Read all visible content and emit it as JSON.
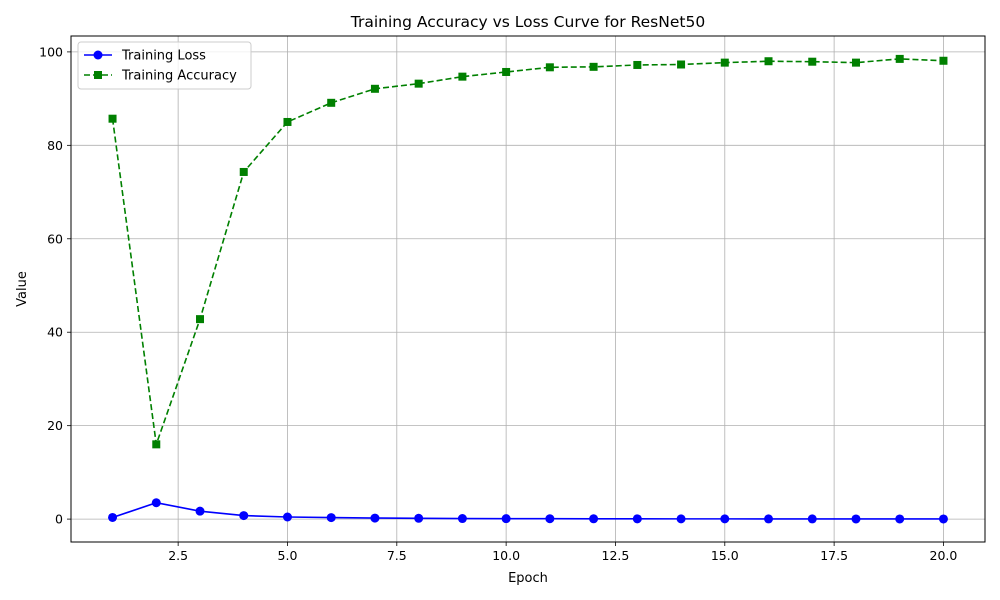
{
  "chart_data": {
    "type": "line",
    "title": "Training Accuracy vs Loss Curve for ResNet50",
    "xlabel": "Epoch",
    "ylabel": "Value",
    "xlim": [
      0.05,
      20.95
    ],
    "ylim": [
      -4.9,
      103.4
    ],
    "xticks": [
      2.5,
      5.0,
      7.5,
      10.0,
      12.5,
      15.0,
      17.5,
      20.0
    ],
    "xtick_labels": [
      "2.5",
      "5.0",
      "7.5",
      "10.0",
      "12.5",
      "15.0",
      "17.5",
      "20.0"
    ],
    "yticks": [
      0,
      20,
      40,
      60,
      80,
      100
    ],
    "ytick_labels": [
      "0",
      "20",
      "40",
      "60",
      "80",
      "100"
    ],
    "grid": true,
    "legend_position": "top-left",
    "x": [
      1,
      2,
      3,
      4,
      5,
      6,
      7,
      8,
      9,
      10,
      11,
      12,
      13,
      14,
      15,
      16,
      17,
      18,
      19,
      20
    ],
    "series": [
      {
        "name": "Training Loss",
        "color": "#0000ff",
        "marker": "circle",
        "line_style": "solid",
        "values": [
          0.35,
          3.5,
          1.7,
          0.75,
          0.45,
          0.32,
          0.22,
          0.18,
          0.12,
          0.1,
          0.08,
          0.07,
          0.06,
          0.05,
          0.05,
          0.04,
          0.04,
          0.03,
          0.03,
          0.03
        ]
      },
      {
        "name": "Training Accuracy",
        "color": "#008000",
        "marker": "square",
        "line_style": "dashed",
        "values": [
          85.7,
          16.0,
          42.8,
          74.3,
          85.0,
          89.1,
          92.1,
          93.2,
          94.7,
          95.7,
          96.7,
          96.8,
          97.2,
          97.3,
          97.7,
          98.0,
          97.9,
          97.7,
          98.5,
          98.1
        ]
      }
    ]
  }
}
